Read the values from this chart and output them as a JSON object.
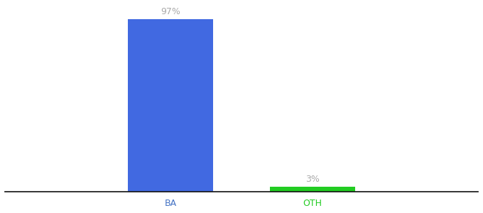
{
  "categories": [
    "BA",
    "OTH"
  ],
  "values": [
    97,
    3
  ],
  "bar_colors": [
    "#4169e1",
    "#22cc22"
  ],
  "label_texts": [
    "97%",
    "3%"
  ],
  "label_color": "#aaaaaa",
  "tick_color_BA": "#4472c4",
  "tick_color_OTH": "#22cc22",
  "background_color": "#ffffff",
  "ylim": [
    0,
    105
  ],
  "bar_width": 0.18,
  "label_fontsize": 9,
  "tick_fontsize": 9,
  "spine_color": "#111111",
  "x_positions": [
    0.35,
    0.65
  ],
  "xlim": [
    0.0,
    1.0
  ]
}
